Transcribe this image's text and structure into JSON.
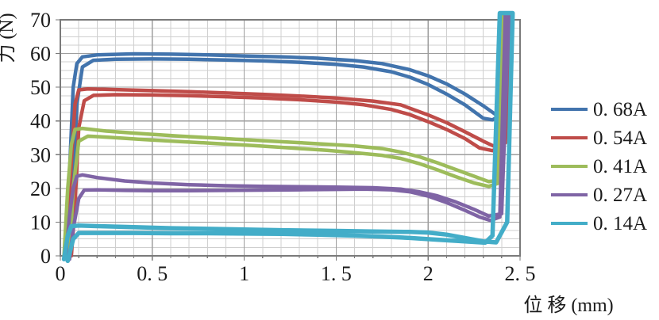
{
  "chart_data": {
    "type": "line",
    "title": "",
    "xlabel": "位 移 (mm)",
    "ylabel": "力 (N)",
    "xlim": [
      0,
      2.5
    ],
    "ylim": [
      0,
      70
    ],
    "x_tick_values": [
      0,
      0.5,
      1,
      1.5,
      2,
      2.5
    ],
    "x_tick_labels": [
      "0",
      "0. 5",
      "1",
      "1. 5",
      "2",
      "2. 5"
    ],
    "y_tick_values": [
      0,
      10,
      20,
      30,
      40,
      50,
      60,
      70
    ],
    "y_tick_labels": [
      "0",
      "10",
      "20",
      "30",
      "40",
      "50",
      "60",
      "70"
    ],
    "x_minor_step": 0.1,
    "y_minor_step": 2.5,
    "grid": true,
    "legend_position": "right",
    "background": "#ffffff",
    "grid_minor_color": "#cfcfcf",
    "grid_major_color": "#9e9e9e",
    "spine_color": "#7a7a7a",
    "series": [
      {
        "name": "0. 68A",
        "color": "#4274AD",
        "stroke_width": 4.5,
        "loading": [
          [
            0.03,
            0
          ],
          [
            0.05,
            25
          ],
          [
            0.07,
            50
          ],
          [
            0.09,
            57
          ],
          [
            0.12,
            59
          ],
          [
            0.2,
            59.6
          ],
          [
            0.4,
            59.9
          ],
          [
            0.6,
            59.8
          ],
          [
            0.8,
            59.6
          ],
          [
            1.0,
            59.3
          ],
          [
            1.2,
            59.0
          ],
          [
            1.4,
            58.6
          ],
          [
            1.6,
            57.9
          ],
          [
            1.75,
            57.0
          ],
          [
            1.9,
            55.2
          ],
          [
            2.0,
            53.4
          ],
          [
            2.1,
            51.0
          ],
          [
            2.2,
            48.0
          ],
          [
            2.3,
            44.5
          ],
          [
            2.37,
            41.8
          ],
          [
            2.42,
            43.0
          ],
          [
            2.45,
            72
          ]
        ],
        "return": [
          [
            2.43,
            72
          ],
          [
            2.4,
            42.0
          ],
          [
            2.35,
            40.3
          ],
          [
            2.3,
            40.8
          ],
          [
            2.2,
            44.8
          ],
          [
            2.1,
            48.0
          ],
          [
            2.0,
            50.8
          ],
          [
            1.9,
            53.0
          ],
          [
            1.8,
            54.6
          ],
          [
            1.65,
            56.0
          ],
          [
            1.5,
            56.8
          ],
          [
            1.3,
            57.4
          ],
          [
            1.1,
            57.8
          ],
          [
            0.9,
            58.1
          ],
          [
            0.7,
            58.3
          ],
          [
            0.5,
            58.4
          ],
          [
            0.3,
            58.3
          ],
          [
            0.18,
            58.0
          ],
          [
            0.12,
            56.0
          ],
          [
            0.09,
            45.0
          ],
          [
            0.07,
            20.0
          ],
          [
            0.05,
            0
          ]
        ]
      },
      {
        "name": "0. 54A",
        "color": "#BF4C49",
        "stroke_width": 4.5,
        "loading": [
          [
            0.03,
            0
          ],
          [
            0.06,
            28
          ],
          [
            0.08,
            45
          ],
          [
            0.1,
            49.2
          ],
          [
            0.15,
            49.5
          ],
          [
            0.3,
            49.3
          ],
          [
            0.5,
            49.0
          ],
          [
            0.7,
            48.7
          ],
          [
            0.9,
            48.3
          ],
          [
            1.1,
            47.9
          ],
          [
            1.3,
            47.4
          ],
          [
            1.5,
            46.8
          ],
          [
            1.7,
            45.9
          ],
          [
            1.85,
            44.8
          ],
          [
            2.0,
            41.8
          ],
          [
            2.1,
            39.5
          ],
          [
            2.2,
            36.8
          ],
          [
            2.3,
            34.0
          ],
          [
            2.37,
            32.2
          ],
          [
            2.42,
            33.5
          ],
          [
            2.45,
            72
          ]
        ],
        "return": [
          [
            2.43,
            72
          ],
          [
            2.4,
            32.5
          ],
          [
            2.35,
            31.2
          ],
          [
            2.28,
            32.0
          ],
          [
            2.2,
            34.8
          ],
          [
            2.1,
            37.5
          ],
          [
            2.0,
            39.8
          ],
          [
            1.9,
            41.9
          ],
          [
            1.8,
            43.4
          ],
          [
            1.65,
            44.8
          ],
          [
            1.5,
            45.6
          ],
          [
            1.3,
            46.3
          ],
          [
            1.1,
            46.8
          ],
          [
            0.9,
            47.2
          ],
          [
            0.7,
            47.5
          ],
          [
            0.5,
            47.7
          ],
          [
            0.3,
            47.8
          ],
          [
            0.18,
            47.6
          ],
          [
            0.13,
            46.0
          ],
          [
            0.1,
            38.0
          ],
          [
            0.08,
            15.0
          ],
          [
            0.06,
            0
          ]
        ]
      },
      {
        "name": "0. 41A",
        "color": "#9DBC5B",
        "stroke_width": 4.5,
        "loading": [
          [
            0.02,
            0
          ],
          [
            0.04,
            20
          ],
          [
            0.06,
            33
          ],
          [
            0.08,
            37.5
          ],
          [
            0.12,
            37.8
          ],
          [
            0.25,
            37.0
          ],
          [
            0.45,
            36.2
          ],
          [
            0.65,
            35.5
          ],
          [
            0.85,
            34.9
          ],
          [
            1.05,
            34.3
          ],
          [
            1.25,
            33.7
          ],
          [
            1.45,
            33.1
          ],
          [
            1.6,
            32.6
          ],
          [
            1.75,
            31.8
          ],
          [
            1.85,
            30.8
          ],
          [
            1.95,
            29.4
          ],
          [
            2.05,
            27.6
          ],
          [
            2.15,
            25.6
          ],
          [
            2.25,
            23.6
          ],
          [
            2.33,
            22.0
          ],
          [
            2.39,
            22.5
          ],
          [
            2.43,
            72
          ]
        ],
        "return": [
          [
            2.41,
            72
          ],
          [
            2.38,
            21.5
          ],
          [
            2.33,
            20.6
          ],
          [
            2.25,
            21.6
          ],
          [
            2.15,
            23.5
          ],
          [
            2.05,
            25.5
          ],
          [
            1.95,
            27.4
          ],
          [
            1.85,
            28.9
          ],
          [
            1.75,
            29.8
          ],
          [
            1.6,
            30.6
          ],
          [
            1.45,
            31.3
          ],
          [
            1.25,
            32.0
          ],
          [
            1.05,
            32.7
          ],
          [
            0.85,
            33.3
          ],
          [
            0.65,
            33.9
          ],
          [
            0.45,
            34.5
          ],
          [
            0.25,
            35.2
          ],
          [
            0.15,
            35.5
          ],
          [
            0.1,
            34.0
          ],
          [
            0.07,
            20.0
          ],
          [
            0.05,
            0
          ]
        ]
      },
      {
        "name": "0. 27A",
        "color": "#7F64A5",
        "stroke_width": 4.5,
        "loading": [
          [
            0.03,
            0
          ],
          [
            0.05,
            12
          ],
          [
            0.07,
            20
          ],
          [
            0.09,
            23.6
          ],
          [
            0.12,
            24.0
          ],
          [
            0.2,
            23.2
          ],
          [
            0.35,
            22.2
          ],
          [
            0.5,
            21.6
          ],
          [
            0.7,
            21.1
          ],
          [
            0.9,
            20.8
          ],
          [
            1.1,
            20.6
          ],
          [
            1.3,
            20.5
          ],
          [
            1.5,
            20.4
          ],
          [
            1.7,
            20.2
          ],
          [
            1.85,
            19.8
          ],
          [
            1.95,
            19.0
          ],
          [
            2.05,
            17.8
          ],
          [
            2.15,
            16.0
          ],
          [
            2.25,
            13.8
          ],
          [
            2.33,
            11.8
          ],
          [
            2.4,
            12.5
          ],
          [
            2.44,
            72
          ]
        ],
        "return": [
          [
            2.42,
            72
          ],
          [
            2.39,
            11.5
          ],
          [
            2.34,
            10.5
          ],
          [
            2.28,
            11.5
          ],
          [
            2.2,
            13.5
          ],
          [
            2.1,
            15.8
          ],
          [
            2.0,
            17.7
          ],
          [
            1.9,
            19.0
          ],
          [
            1.8,
            19.6
          ],
          [
            1.65,
            19.8
          ],
          [
            1.5,
            19.7
          ],
          [
            1.3,
            19.6
          ],
          [
            1.1,
            19.5
          ],
          [
            0.9,
            19.4
          ],
          [
            0.7,
            19.3
          ],
          [
            0.5,
            19.3
          ],
          [
            0.35,
            19.4
          ],
          [
            0.2,
            19.6
          ],
          [
            0.13,
            19.5
          ],
          [
            0.1,
            17.0
          ],
          [
            0.07,
            8.0
          ],
          [
            0.05,
            -1
          ]
        ]
      },
      {
        "name": "0. 14A",
        "color": "#43ADC8",
        "stroke_width": 5.5,
        "loading": [
          [
            0.02,
            -1
          ],
          [
            0.04,
            6
          ],
          [
            0.06,
            8.8
          ],
          [
            0.1,
            9.0
          ],
          [
            0.2,
            8.8
          ],
          [
            0.4,
            8.5
          ],
          [
            0.6,
            8.2
          ],
          [
            0.8,
            8.0
          ],
          [
            1.0,
            7.8
          ],
          [
            1.2,
            7.6
          ],
          [
            1.5,
            7.4
          ],
          [
            1.7,
            7.2
          ],
          [
            1.9,
            7.1
          ],
          [
            2.0,
            6.9
          ],
          [
            2.1,
            6.3
          ],
          [
            2.2,
            5.3
          ],
          [
            2.3,
            4.3
          ],
          [
            2.37,
            4.0
          ],
          [
            2.43,
            10.0
          ],
          [
            2.46,
            72
          ]
        ],
        "return": [
          [
            2.39,
            72
          ],
          [
            2.35,
            6.0
          ],
          [
            2.31,
            3.9
          ],
          [
            2.2,
            4.3
          ],
          [
            2.05,
            4.8
          ],
          [
            1.9,
            5.3
          ],
          [
            1.75,
            5.7
          ],
          [
            1.6,
            6.0
          ],
          [
            1.4,
            6.3
          ],
          [
            1.2,
            6.5
          ],
          [
            1.0,
            6.6
          ],
          [
            0.8,
            6.7
          ],
          [
            0.6,
            6.7
          ],
          [
            0.4,
            6.8
          ],
          [
            0.2,
            6.8
          ],
          [
            0.1,
            6.8
          ],
          [
            0.07,
            5.0
          ],
          [
            0.04,
            -1.5
          ]
        ]
      }
    ]
  }
}
